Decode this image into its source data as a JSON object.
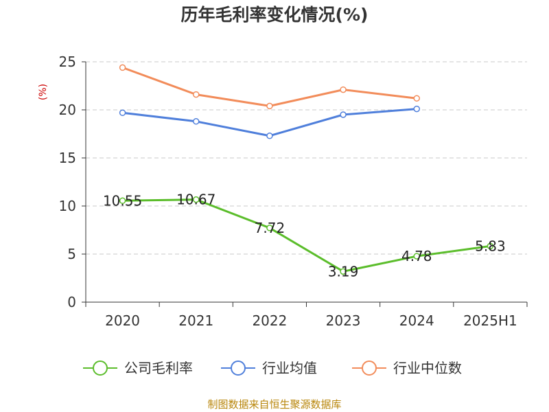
{
  "chart_data": {
    "type": "line",
    "title": "历年毛利率变化情况(%)",
    "ylabel": "(%)",
    "xlabel": "",
    "categories": [
      "2020",
      "2021",
      "2022",
      "2023",
      "2024",
      "2025H1"
    ],
    "ylim": [
      0,
      25
    ],
    "yticks": [
      0,
      5,
      10,
      15,
      20,
      25
    ],
    "grid": true,
    "legend_position": "bottom",
    "series": [
      {
        "name": "公司毛利率",
        "color": "#5bbd2b",
        "values": [
          10.55,
          10.67,
          7.72,
          3.19,
          4.78,
          5.83
        ],
        "labels": [
          "10.55",
          "10.67",
          "7.72",
          "3.19",
          "4.78",
          "5.83"
        ]
      },
      {
        "name": "行业均值",
        "color": "#4f7fdb",
        "values": [
          19.7,
          18.8,
          17.3,
          19.5,
          20.1,
          null
        ]
      },
      {
        "name": "行业中位数",
        "color": "#f28c5a",
        "values": [
          24.4,
          21.6,
          20.4,
          22.1,
          21.2,
          null
        ]
      }
    ]
  },
  "footer": "制图数据来自恒生聚源数据库"
}
